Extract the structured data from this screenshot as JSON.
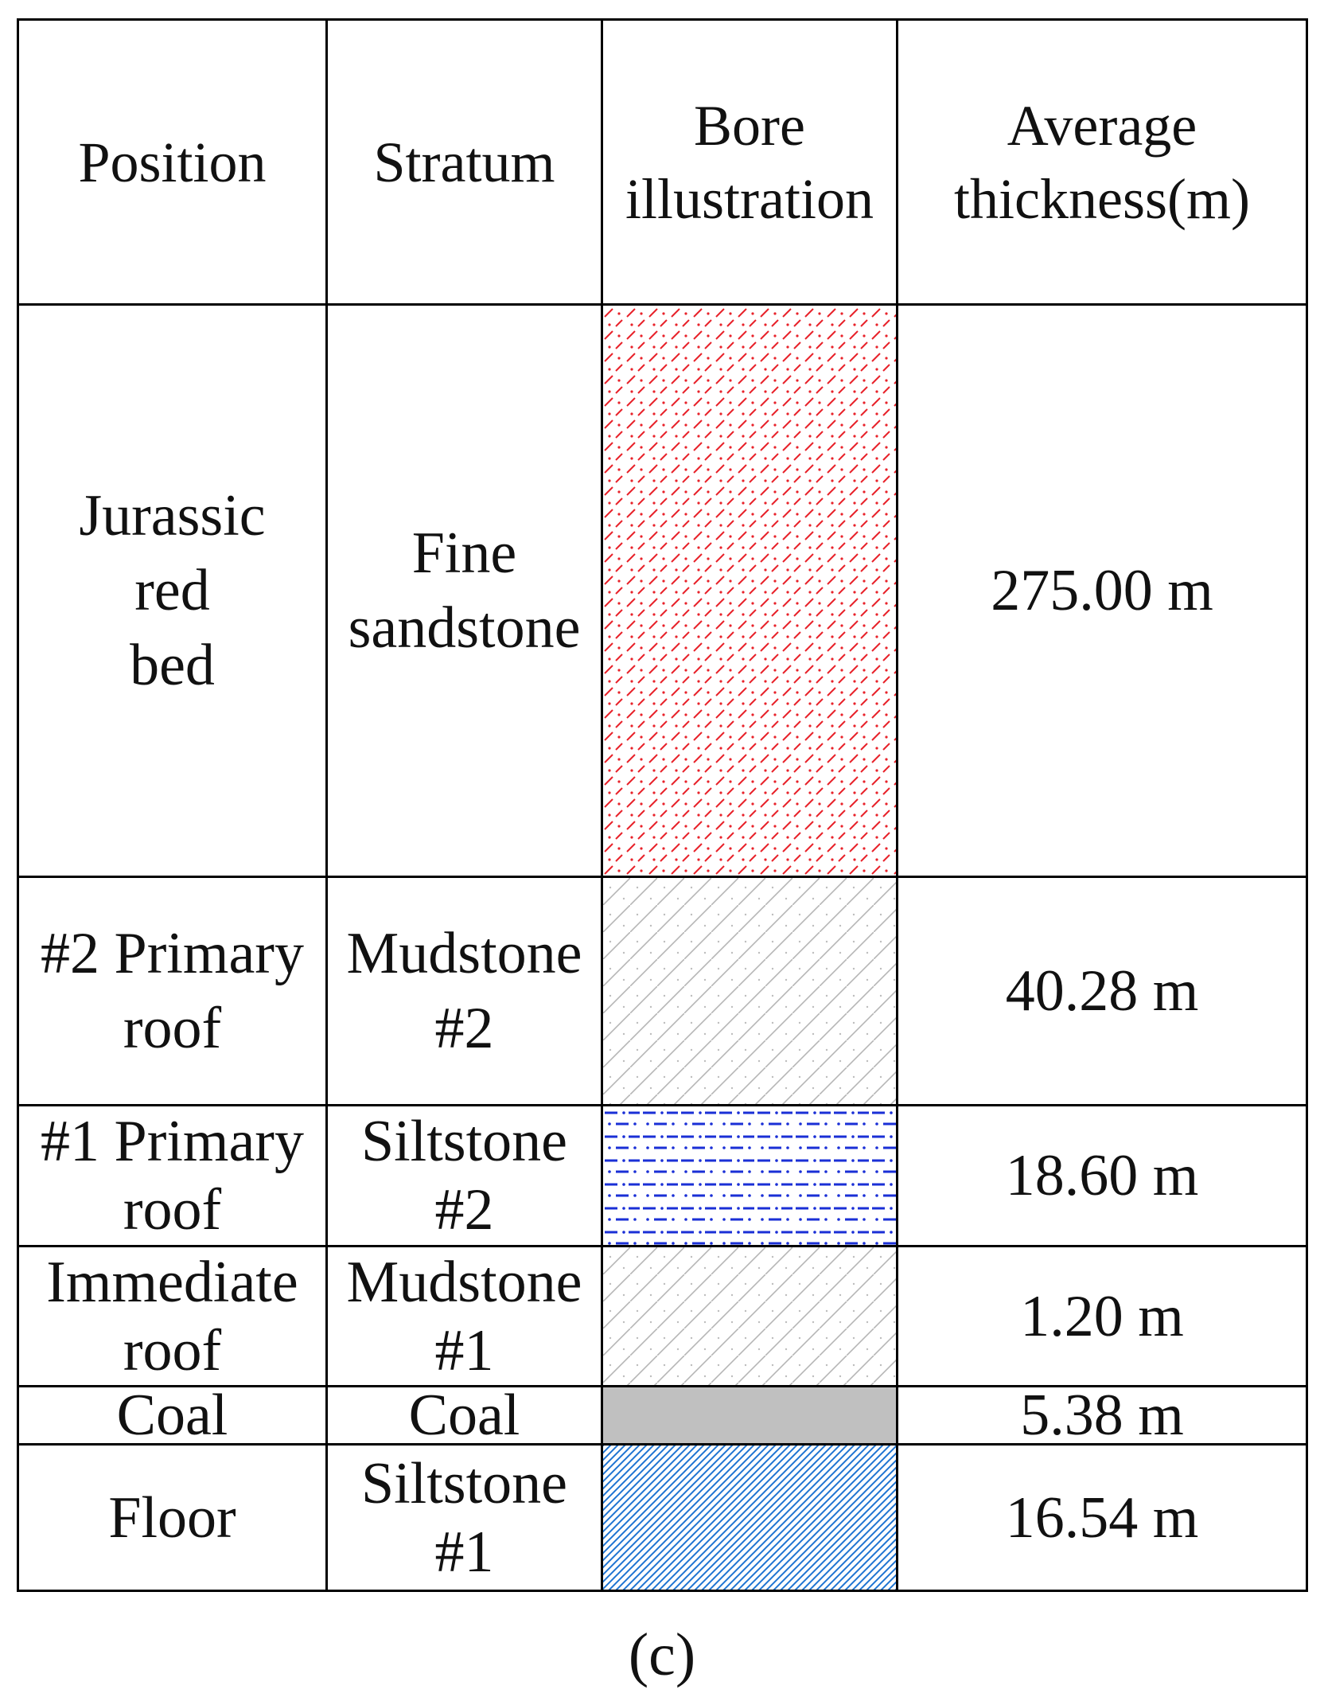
{
  "table": {
    "headers": {
      "position": "Position",
      "stratum": "Stratum",
      "bore": "Bore illustration",
      "thickness": "Average thickness(m)"
    },
    "rows": [
      {
        "position": "Jurassic\nred\nbed",
        "stratum": "Fine\nsandstone",
        "thickness": "275.00 m",
        "pattern": "fine-sandstone-red-dash-dot"
      },
      {
        "position": "#2 Primary\nroof",
        "stratum": "Mudstone\n#2",
        "thickness": "40.28 m",
        "pattern": "mudstone-gray-hatch"
      },
      {
        "position": "#1 Primary\nroof",
        "stratum": "Siltstone\n#2",
        "thickness": "18.60 m",
        "pattern": "siltstone-blue-dash-dot"
      },
      {
        "position": "Immediate\nroof",
        "stratum": "Mudstone\n#1",
        "thickness": "1.20 m",
        "pattern": "mudstone-gray-hatch"
      },
      {
        "position": "Coal",
        "stratum": "Coal",
        "thickness": "5.38 m",
        "pattern": "coal-solid-gray"
      },
      {
        "position": "Floor",
        "stratum": "Siltstone\n#1",
        "thickness": "16.54 m",
        "pattern": "siltstone-blue-dense-hatch"
      }
    ]
  },
  "colors": {
    "fine_sandstone": "#e8222a",
    "mudstone": "#b5b5b5",
    "siltstone_dash": "#1a2fd6",
    "coal": "#c0c0c0",
    "floor_hatch": "#1e74d2"
  },
  "figure_label": "(c)"
}
